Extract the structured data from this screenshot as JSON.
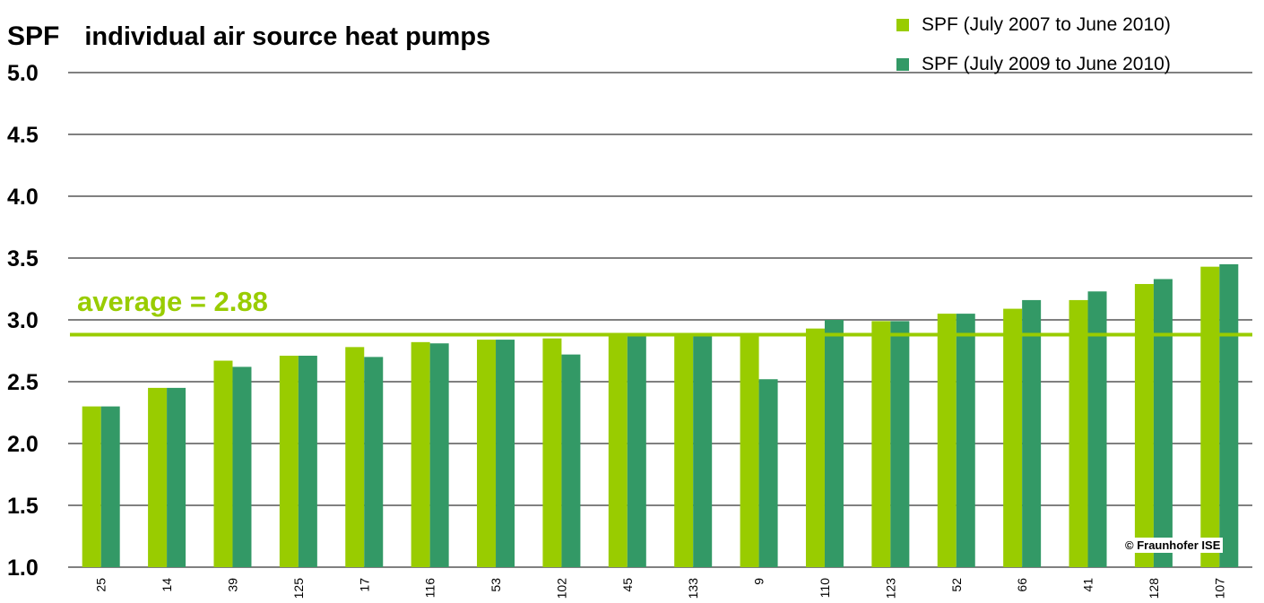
{
  "chart_data": {
    "type": "bar",
    "title": "individual air source heat pumps",
    "ylabel": "SPF",
    "xlabel": "",
    "ylim": [
      1.0,
      5.0
    ],
    "yticks": [
      "1.0",
      "1.5",
      "2.0",
      "2.5",
      "3.0",
      "3.5",
      "4.0",
      "4.5",
      "5.0"
    ],
    "grid": true,
    "legend_position": "top-right",
    "categories": [
      "25",
      "14",
      "39",
      "125",
      "17",
      "116",
      "53",
      "102",
      "45",
      "133",
      "9",
      "110",
      "123",
      "52",
      "66",
      "41",
      "128",
      "107"
    ],
    "series": [
      {
        "name": "SPF (July 2007 to June 2010)",
        "color": "#99cc00",
        "values": [
          2.3,
          2.45,
          2.67,
          2.71,
          2.78,
          2.82,
          2.84,
          2.85,
          2.88,
          2.88,
          2.89,
          2.93,
          2.99,
          3.05,
          3.09,
          3.16,
          3.29,
          3.43
        ]
      },
      {
        "name": "SPF (July 2009 to June 2010)",
        "color": "#339966",
        "values": [
          2.3,
          2.45,
          2.62,
          2.71,
          2.7,
          2.81,
          2.84,
          2.72,
          2.88,
          2.88,
          2.52,
          3.0,
          2.99,
          3.05,
          3.16,
          3.23,
          3.33,
          3.45
        ]
      }
    ],
    "average_line": {
      "label": "average = 2.88",
      "value": 2.88,
      "color": "#99cc00"
    },
    "annotation": "© Fraunhofer ISE"
  }
}
